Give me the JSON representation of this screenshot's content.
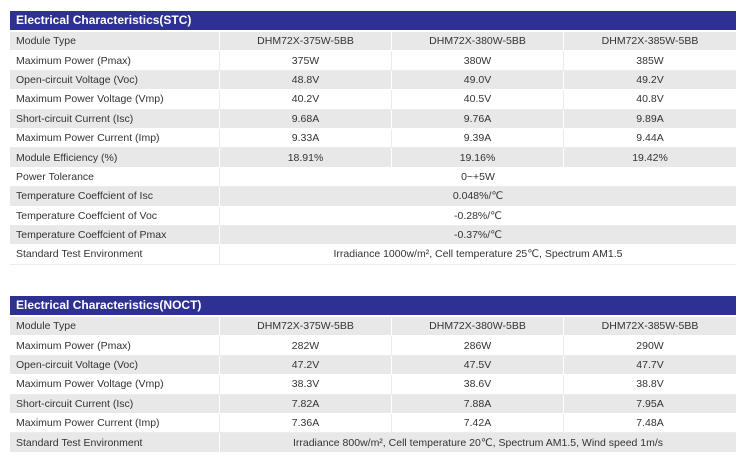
{
  "stc": {
    "title": "Electrical Characteristics(STC)",
    "rows": [
      {
        "label": "Module Type",
        "values": [
          "DHM72X-375W-5BB",
          "DHM72X-380W-5BB",
          "DHM72X-385W-5BB"
        ]
      },
      {
        "label": "Maximum Power (Pmax)",
        "values": [
          "375W",
          "380W",
          "385W"
        ]
      },
      {
        "label": "Open-circuit Voltage (Voc)",
        "values": [
          "48.8V",
          "49.0V",
          "49.2V"
        ]
      },
      {
        "label": "Maximum Power Voltage (Vmp)",
        "values": [
          "40.2V",
          "40.5V",
          "40.8V"
        ]
      },
      {
        "label": "Short-circuit Current (Isc)",
        "values": [
          "9.68A",
          "9.76A",
          "9.89A"
        ]
      },
      {
        "label": "Maximum Power Current (Imp)",
        "values": [
          "9.33A",
          "9.39A",
          "9.44A"
        ]
      },
      {
        "label": "Module Efficiency (%)",
        "values": [
          "18.91%",
          "19.16%",
          "19.42%"
        ]
      }
    ],
    "merged_rows": [
      {
        "label": "Power Tolerance",
        "value": "0~+5W"
      },
      {
        "label": "Temperature Coeffcient of Isc",
        "value": "0.048%/℃"
      },
      {
        "label": "Temperature Coeffcient of Voc",
        "value": "-0.28%/℃"
      },
      {
        "label": "Temperature Coeffcient of Pmax",
        "value": "-0.37%/℃"
      },
      {
        "label": "Standard Test Environment",
        "value": "Irradiance 1000w/m², Cell temperature 25℃, Spectrum AM1.5"
      }
    ]
  },
  "noct": {
    "title": "Electrical Characteristics(NOCT)",
    "rows": [
      {
        "label": "Module Type",
        "values": [
          "DHM72X-375W-5BB",
          "DHM72X-380W-5BB",
          "DHM72X-385W-5BB"
        ]
      },
      {
        "label": "Maximum Power (Pmax)",
        "values": [
          "282W",
          "286W",
          "290W"
        ]
      },
      {
        "label": "Open-circuit Voltage (Voc)",
        "values": [
          "47.2V",
          "47.5V",
          "47.7V"
        ]
      },
      {
        "label": "Maximum Power Voltage (Vmp)",
        "values": [
          "38.3V",
          "38.6V",
          "38.8V"
        ]
      },
      {
        "label": "Short-circuit Current (Isc)",
        "values": [
          "7.82A",
          "7.88A",
          "7.95A"
        ]
      },
      {
        "label": "Maximum Power Current (Imp)",
        "values": [
          "7.36A",
          "7.42A",
          "7.48A"
        ]
      }
    ],
    "merged_rows": [
      {
        "label": "Standard Test Environment",
        "value": "Irradiance 800w/m², Cell temperature 20℃, Spectrum AM1.5, Wind speed 1m/s"
      }
    ]
  },
  "colors": {
    "header_bg": "#2e3192",
    "header_text": "#ffffff",
    "row_shaded": "#e8e8e8",
    "row_plain": "#ffffff"
  }
}
